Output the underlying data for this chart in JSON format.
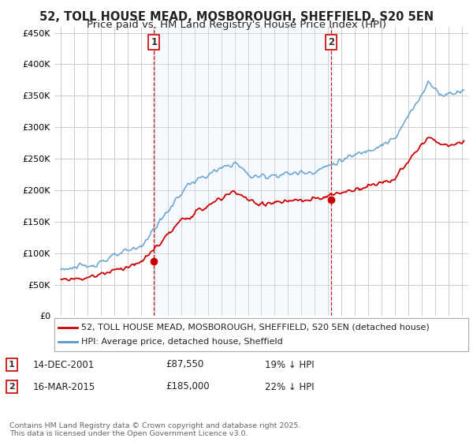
{
  "title": "52, TOLL HOUSE MEAD, MOSBOROUGH, SHEFFIELD, S20 5EN",
  "subtitle": "Price paid vs. HM Land Registry's House Price Index (HPI)",
  "ylabel_ticks": [
    "£0",
    "£50K",
    "£100K",
    "£150K",
    "£200K",
    "£250K",
    "£300K",
    "£350K",
    "£400K",
    "£450K"
  ],
  "ytick_values": [
    0,
    50000,
    100000,
    150000,
    200000,
    250000,
    300000,
    350000,
    400000,
    450000
  ],
  "ylim": [
    0,
    460000
  ],
  "xlim_start": 1994.5,
  "xlim_end": 2025.5,
  "sale1_x": 2001.96,
  "sale1_y": 87550,
  "sale2_x": 2015.21,
  "sale2_y": 185000,
  "sale1_label": "1",
  "sale2_label": "2",
  "sale1_date": "14-DEC-2001",
  "sale1_price": "£87,550",
  "sale1_hpi": "19% ↓ HPI",
  "sale2_date": "16-MAR-2015",
  "sale2_price": "£185,000",
  "sale2_hpi": "22% ↓ HPI",
  "line1_color": "#cc0000",
  "line2_color": "#5599cc",
  "shade_color": "#ddeeff",
  "vline_color": "#cc0000",
  "grid_color": "#cccccc",
  "background_color": "#ffffff",
  "legend_line1": "52, TOLL HOUSE MEAD, MOSBOROUGH, SHEFFIELD, S20 5EN (detached house)",
  "legend_line2": "HPI: Average price, detached house, Sheffield",
  "footer": "Contains HM Land Registry data © Crown copyright and database right 2025.\nThis data is licensed under the Open Government Licence v3.0.",
  "title_fontsize": 10.5,
  "subtitle_fontsize": 9.5,
  "tick_fontsize": 8,
  "legend_fontsize": 8
}
